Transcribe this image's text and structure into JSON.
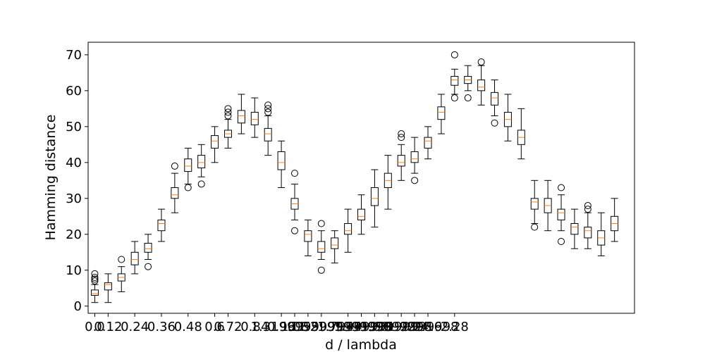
{
  "chart_data": {
    "type": "box",
    "title": "",
    "xlabel": "d / lambda",
    "ylabel": "Hamming distance",
    "ylim": [
      -2,
      73.5
    ],
    "xlim": [
      0.5,
      41.5
    ],
    "grid": false,
    "yticks": [
      0,
      10,
      20,
      30,
      40,
      50,
      60,
      70
    ],
    "xtick_labels": [
      {
        "position": 1,
        "label": "0.0"
      },
      {
        "position": 2,
        "label": "0.12"
      },
      {
        "position": 4,
        "label": "0.24"
      },
      {
        "position": 6,
        "label": "0.36"
      },
      {
        "position": 8,
        "label": "0.48"
      },
      {
        "position": 10,
        "label": "0.6"
      },
      {
        "position": 11,
        "label": "0.72"
      },
      {
        "position": 13,
        "label": "0.84"
      },
      {
        "position": 15,
        "label": "0.96"
      },
      {
        "position": 16,
        "label": "1.08"
      },
      {
        "position": 17,
        "label": "1.2"
      },
      {
        "position": 18,
        "label": "1.3199999999999998"
      },
      {
        "position": 20,
        "label": "1.44"
      },
      {
        "position": 21,
        "label": "1.5599999999999998"
      },
      {
        "position": 22,
        "label": "1.68"
      },
      {
        "position": 23,
        "label": "1.7999999999999998"
      },
      {
        "position": 24,
        "label": "1.92"
      },
      {
        "position": 25,
        "label": "2.04"
      },
      {
        "position": 26,
        "label": "2.16"
      },
      {
        "position": 28,
        "label": "2.28"
      }
    ],
    "boxes": [
      {
        "pos": 1,
        "whislo": 1,
        "q1": 3,
        "med": 3.5,
        "q3": 4.5,
        "whishi": 6,
        "fliers": [
          7,
          7.5,
          8,
          9
        ]
      },
      {
        "pos": 2,
        "whislo": 1,
        "q1": 4.5,
        "med": 6,
        "q3": 6.5,
        "whishi": 9,
        "fliers": []
      },
      {
        "pos": 3,
        "whislo": 4,
        "q1": 7,
        "med": 8,
        "q3": 9,
        "whishi": 11,
        "fliers": [
          13
        ]
      },
      {
        "pos": 4,
        "whislo": 9,
        "q1": 11.5,
        "med": 13,
        "q3": 15,
        "whishi": 18,
        "fliers": []
      },
      {
        "pos": 5,
        "whislo": 13,
        "q1": 15,
        "med": 16,
        "q3": 17.5,
        "whishi": 20,
        "fliers": [
          11
        ]
      },
      {
        "pos": 6,
        "whislo": 18,
        "q1": 21,
        "med": 23,
        "q3": 24,
        "whishi": 27,
        "fliers": []
      },
      {
        "pos": 7,
        "whislo": 26,
        "q1": 30,
        "med": 31,
        "q3": 33,
        "whishi": 37,
        "fliers": [
          39
        ]
      },
      {
        "pos": 8,
        "whislo": 34,
        "q1": 37.5,
        "med": 39,
        "q3": 41,
        "whishi": 44,
        "fliers": [
          33
        ]
      },
      {
        "pos": 9,
        "whislo": 36,
        "q1": 38.5,
        "med": 40,
        "q3": 42,
        "whishi": 45,
        "fliers": [
          34
        ]
      },
      {
        "pos": 10,
        "whislo": 40,
        "q1": 44,
        "med": 46,
        "q3": 47.5,
        "whishi": 50,
        "fliers": []
      },
      {
        "pos": 11,
        "whislo": 44,
        "q1": 47,
        "med": 48,
        "q3": 49,
        "whishi": 52,
        "fliers": [
          53,
          54,
          55
        ]
      },
      {
        "pos": 12,
        "whislo": 48,
        "q1": 51,
        "med": 53,
        "q3": 54.5,
        "whishi": 59,
        "fliers": []
      },
      {
        "pos": 13,
        "whislo": 47,
        "q1": 50.5,
        "med": 52,
        "q3": 54,
        "whishi": 58,
        "fliers": []
      },
      {
        "pos": 14,
        "whislo": 42,
        "q1": 46,
        "med": 48,
        "q3": 49.5,
        "whishi": 53,
        "fliers": [
          54,
          55,
          56
        ]
      },
      {
        "pos": 15,
        "whislo": 33,
        "q1": 38,
        "med": 40,
        "q3": 43,
        "whishi": 46,
        "fliers": []
      },
      {
        "pos": 16,
        "whislo": 24,
        "q1": 27,
        "med": 28.5,
        "q3": 30,
        "whishi": 34,
        "fliers": [
          21,
          37
        ]
      },
      {
        "pos": 17,
        "whislo": 14,
        "q1": 18,
        "med": 20,
        "q3": 21,
        "whishi": 24,
        "fliers": []
      },
      {
        "pos": 18,
        "whislo": 13,
        "q1": 15,
        "med": 16,
        "q3": 18,
        "whishi": 21,
        "fliers": [
          10,
          23
        ]
      },
      {
        "pos": 19,
        "whislo": 12,
        "q1": 16,
        "med": 17,
        "q3": 19,
        "whishi": 21,
        "fliers": []
      },
      {
        "pos": 20,
        "whislo": 15,
        "q1": 20,
        "med": 21,
        "q3": 23,
        "whishi": 27,
        "fliers": []
      },
      {
        "pos": 21,
        "whislo": 20,
        "q1": 24,
        "med": 25,
        "q3": 27,
        "whishi": 31,
        "fliers": []
      },
      {
        "pos": 22,
        "whislo": 22,
        "q1": 28,
        "med": 30,
        "q3": 33,
        "whishi": 38,
        "fliers": []
      },
      {
        "pos": 23,
        "whislo": 27,
        "q1": 33,
        "med": 35,
        "q3": 37,
        "whishi": 42,
        "fliers": []
      },
      {
        "pos": 24,
        "whislo": 35,
        "q1": 39,
        "med": 40,
        "q3": 42,
        "whishi": 45,
        "fliers": [
          47,
          48
        ]
      },
      {
        "pos": 25,
        "whislo": 37,
        "q1": 40,
        "med": 41,
        "q3": 43,
        "whishi": 47,
        "fliers": [
          35
        ]
      },
      {
        "pos": 26,
        "whislo": 41,
        "q1": 44,
        "med": 46,
        "q3": 47,
        "whishi": 50,
        "fliers": []
      },
      {
        "pos": 27,
        "whislo": 48,
        "q1": 52,
        "med": 54,
        "q3": 55.5,
        "whishi": 59,
        "fliers": []
      },
      {
        "pos": 28,
        "whislo": 59,
        "q1": 61.5,
        "med": 63,
        "q3": 64,
        "whishi": 66,
        "fliers": [
          58,
          70
        ]
      },
      {
        "pos": 29,
        "whislo": 60,
        "q1": 62,
        "med": 63,
        "q3": 64,
        "whishi": 67,
        "fliers": [
          58
        ]
      },
      {
        "pos": 30,
        "whislo": 56,
        "q1": 60,
        "med": 61,
        "q3": 63,
        "whishi": 67,
        "fliers": [
          68
        ]
      },
      {
        "pos": 31,
        "whislo": 53,
        "q1": 56,
        "med": 58,
        "q3": 59.5,
        "whishi": 63,
        "fliers": [
          51
        ]
      },
      {
        "pos": 32,
        "whislo": 46,
        "q1": 50,
        "med": 52,
        "q3": 54,
        "whishi": 59,
        "fliers": []
      },
      {
        "pos": 33,
        "whislo": 41,
        "q1": 45,
        "med": 47,
        "q3": 49,
        "whishi": 55,
        "fliers": []
      },
      {
        "pos": 34,
        "whislo": 23,
        "q1": 27,
        "med": 29,
        "q3": 30,
        "whishi": 35,
        "fliers": [
          22
        ]
      },
      {
        "pos": 35,
        "whislo": 21,
        "q1": 26,
        "med": 28,
        "q3": 30,
        "whishi": 35,
        "fliers": []
      },
      {
        "pos": 36,
        "whislo": 21,
        "q1": 24,
        "med": 26,
        "q3": 27,
        "whishi": 31,
        "fliers": [
          18,
          33
        ]
      },
      {
        "pos": 37,
        "whislo": 16,
        "q1": 20,
        "med": 22,
        "q3": 23,
        "whishi": 27,
        "fliers": []
      },
      {
        "pos": 38,
        "whislo": 16,
        "q1": 19,
        "med": 21,
        "q3": 22,
        "whishi": 26,
        "fliers": [
          27,
          28
        ]
      },
      {
        "pos": 39,
        "whislo": 14,
        "q1": 17,
        "med": 19,
        "q3": 21,
        "whishi": 26,
        "fliers": []
      },
      {
        "pos": 40,
        "whislo": 18,
        "q1": 21,
        "med": 23,
        "q3": 25,
        "whishi": 30,
        "fliers": []
      }
    ],
    "colors": {
      "box": "#000000",
      "median": "#ff7f0e",
      "flier": "#000000"
    }
  }
}
